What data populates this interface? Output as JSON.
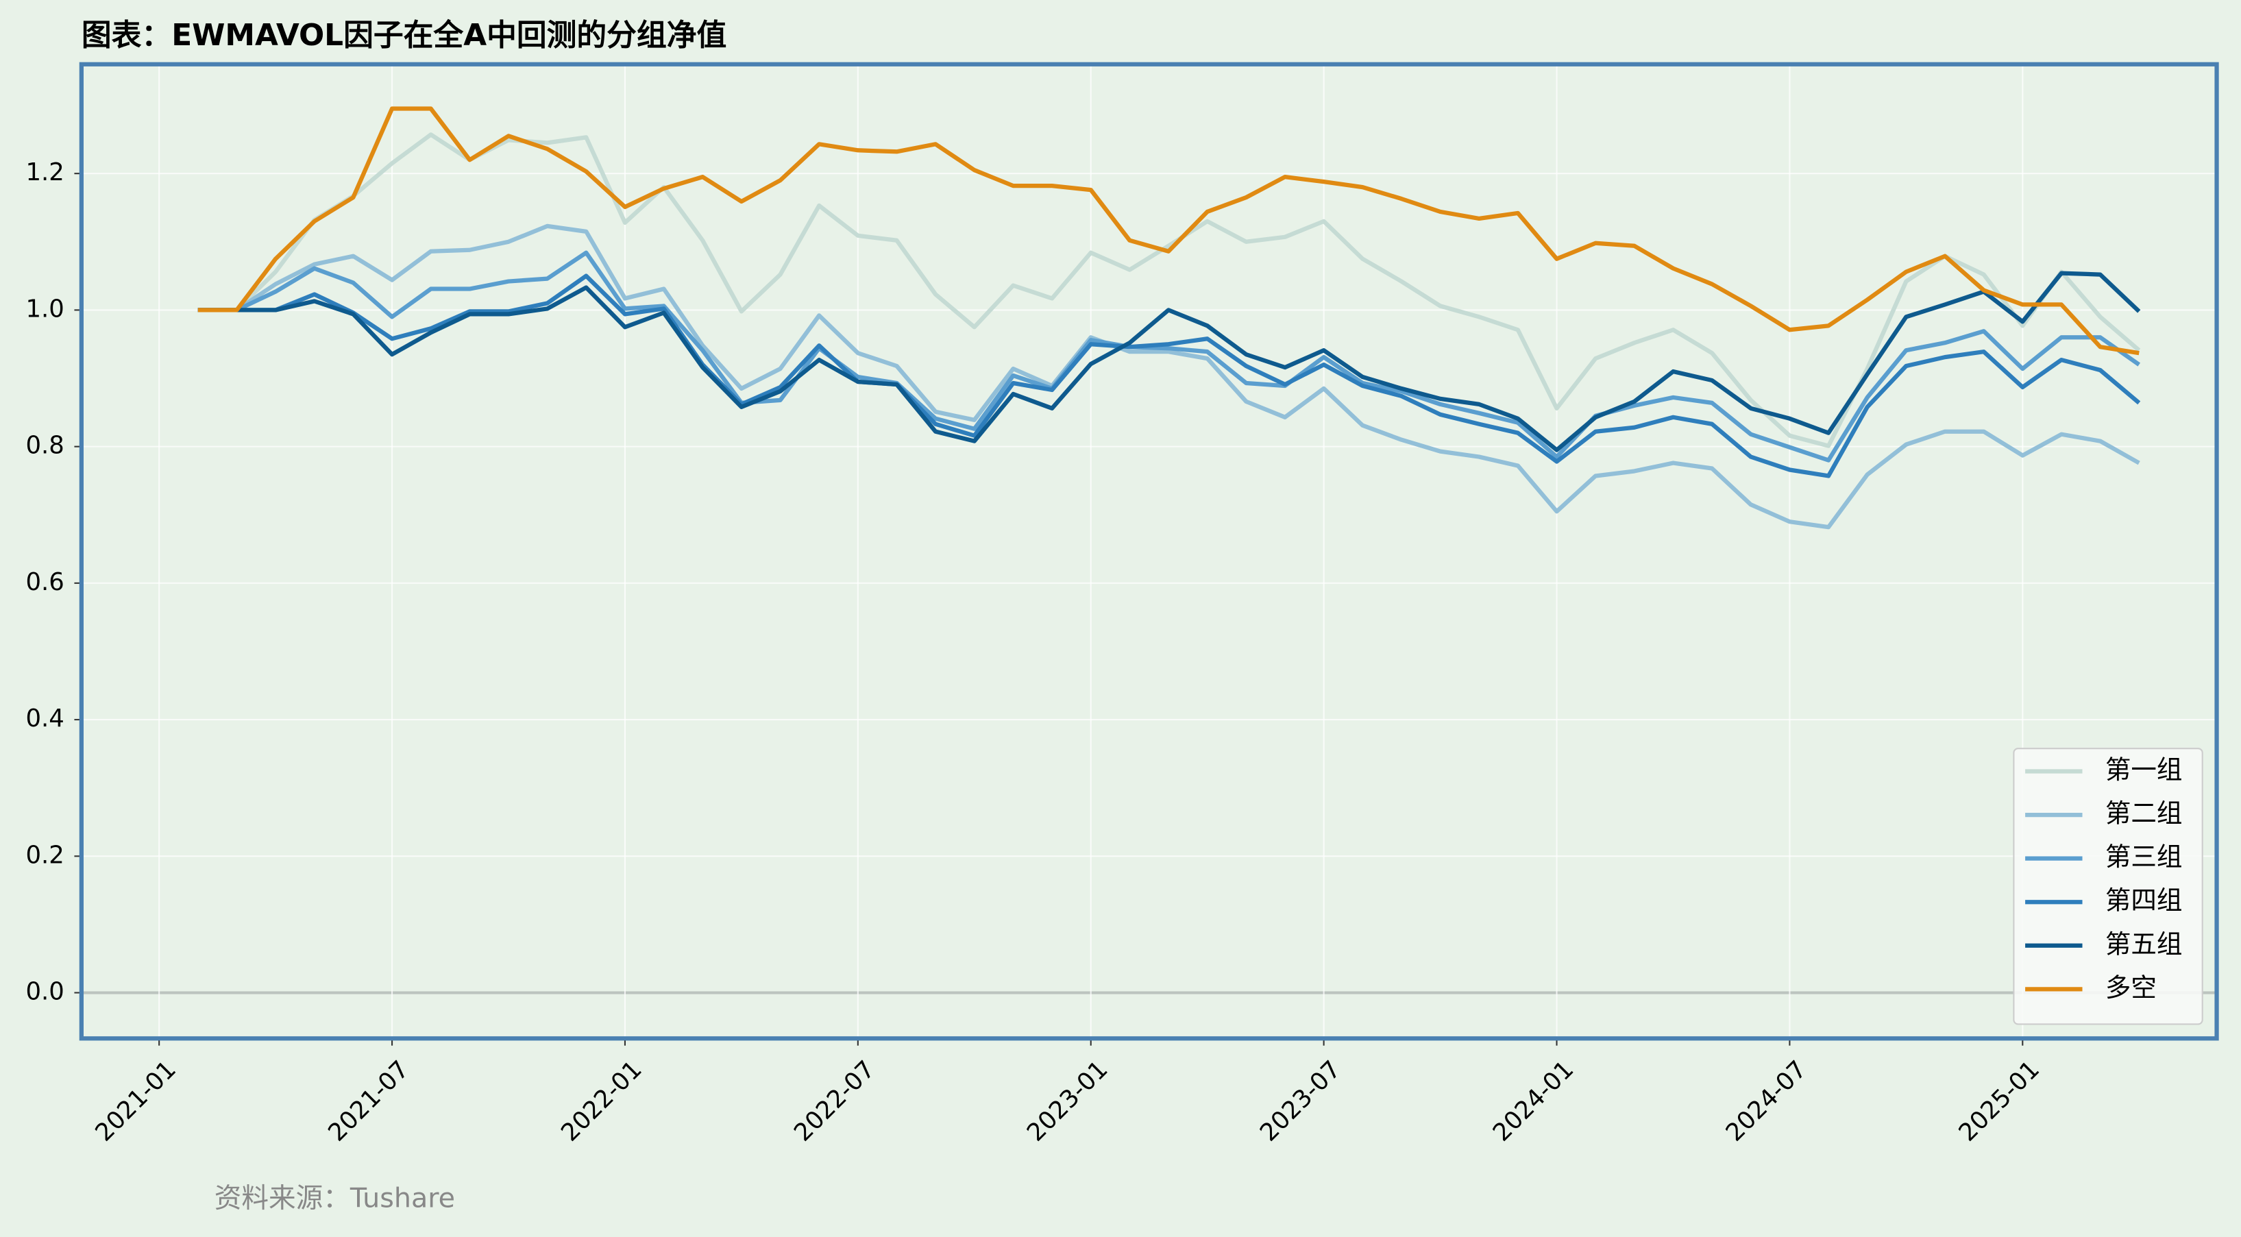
{
  "chart_data": {
    "type": "line",
    "title": "图表：EWMAVOL因子在全A中回测的分组净值",
    "source": "资料来源：Tushare",
    "x": [
      "2021-01",
      "2021-02",
      "2021-03",
      "2021-04",
      "2021-05",
      "2021-06",
      "2021-07",
      "2021-08",
      "2021-09",
      "2021-10",
      "2021-11",
      "2021-12",
      "2022-01",
      "2022-02",
      "2022-03",
      "2022-04",
      "2022-05",
      "2022-06",
      "2022-07",
      "2022-08",
      "2022-09",
      "2022-10",
      "2022-11",
      "2022-12",
      "2023-01",
      "2023-02",
      "2023-03",
      "2023-04",
      "2023-05",
      "2023-06",
      "2023-07",
      "2023-08",
      "2023-09",
      "2023-10",
      "2023-11",
      "2023-12",
      "2024-01",
      "2024-02",
      "2024-03",
      "2024-04",
      "2024-05",
      "2024-06",
      "2024-07",
      "2024-08",
      "2024-09",
      "2024-10",
      "2024-11",
      "2024-12",
      "2025-01",
      "2025-02",
      "2025-03"
    ],
    "series": [
      {
        "name": "第一组",
        "color": "#c5dbd4",
        "values": [
          1.0,
          1.0,
          1.056,
          1.132,
          1.167,
          1.215,
          1.257,
          1.22,
          1.249,
          1.245,
          1.253,
          1.128,
          1.18,
          1.102,
          0.998,
          1.052,
          1.153,
          1.109,
          1.102,
          1.023,
          0.975,
          1.036,
          1.017,
          1.084,
          1.059,
          1.094,
          1.13,
          1.1,
          1.107,
          1.13,
          1.075,
          1.042,
          1.006,
          0.99,
          0.971,
          0.856,
          0.929,
          0.952,
          0.971,
          0.937,
          0.868,
          0.816,
          0.801,
          0.914,
          1.042,
          1.079,
          1.052,
          0.977,
          1.056,
          0.99,
          0.941
        ]
      },
      {
        "name": "第二组",
        "color": "#92bfd8",
        "values": [
          1.0,
          1.0,
          1.038,
          1.067,
          1.079,
          1.044,
          1.086,
          1.088,
          1.1,
          1.123,
          1.115,
          1.017,
          1.031,
          0.948,
          0.885,
          0.914,
          0.992,
          0.937,
          0.918,
          0.851,
          0.839,
          0.914,
          0.889,
          0.96,
          0.939,
          0.939,
          0.929,
          0.866,
          0.843,
          0.885,
          0.831,
          0.81,
          0.793,
          0.785,
          0.772,
          0.705,
          0.757,
          0.764,
          0.776,
          0.768,
          0.715,
          0.69,
          0.682,
          0.759,
          0.803,
          0.822,
          0.822,
          0.787,
          0.818,
          0.808,
          0.776
        ]
      },
      {
        "name": "第三组",
        "color": "#5a9ecf",
        "values": [
          1.0,
          1.0,
          1.027,
          1.061,
          1.04,
          0.99,
          1.031,
          1.031,
          1.042,
          1.046,
          1.084,
          1.002,
          1.006,
          0.941,
          0.864,
          0.868,
          0.944,
          0.902,
          0.893,
          0.841,
          0.826,
          0.904,
          0.885,
          0.956,
          0.946,
          0.944,
          0.939,
          0.893,
          0.889,
          0.931,
          0.893,
          0.881,
          0.862,
          0.849,
          0.835,
          0.785,
          0.845,
          0.86,
          0.872,
          0.864,
          0.818,
          0.799,
          0.78,
          0.872,
          0.941,
          0.952,
          0.969,
          0.914,
          0.96,
          0.96,
          0.92
        ]
      },
      {
        "name": "第四组",
        "color": "#2e7ebc",
        "values": [
          1.0,
          1.0,
          1.0,
          1.023,
          0.996,
          0.958,
          0.973,
          0.998,
          0.998,
          1.01,
          1.05,
          0.994,
          1.002,
          0.92,
          0.862,
          0.887,
          0.948,
          0.895,
          0.891,
          0.833,
          0.816,
          0.893,
          0.883,
          0.95,
          0.946,
          0.95,
          0.958,
          0.918,
          0.891,
          0.92,
          0.889,
          0.874,
          0.847,
          0.833,
          0.82,
          0.778,
          0.822,
          0.828,
          0.843,
          0.833,
          0.785,
          0.766,
          0.757,
          0.858,
          0.918,
          0.931,
          0.939,
          0.887,
          0.927,
          0.912,
          0.864
        ]
      },
      {
        "name": "第五组",
        "color": "#0e5a8e",
        "values": [
          1.0,
          1.0,
          1.0,
          1.013,
          0.994,
          0.935,
          0.967,
          0.994,
          0.994,
          1.002,
          1.033,
          0.975,
          0.996,
          0.916,
          0.858,
          0.881,
          0.927,
          0.895,
          0.891,
          0.822,
          0.808,
          0.877,
          0.856,
          0.921,
          0.952,
          1.0,
          0.977,
          0.935,
          0.916,
          0.941,
          0.902,
          0.885,
          0.87,
          0.862,
          0.841,
          0.795,
          0.843,
          0.866,
          0.91,
          0.897,
          0.856,
          0.841,
          0.82,
          0.906,
          0.99,
          1.008,
          1.027,
          0.983,
          1.054,
          1.052,
          0.998
        ]
      },
      {
        "name": "多空",
        "color": "#e08a12",
        "values": [
          1.0,
          1.0,
          1.075,
          1.13,
          1.165,
          1.295,
          1.295,
          1.22,
          1.255,
          1.236,
          1.203,
          1.151,
          1.178,
          1.195,
          1.159,
          1.19,
          1.243,
          1.234,
          1.232,
          1.243,
          1.205,
          1.182,
          1.182,
          1.176,
          1.102,
          1.086,
          1.144,
          1.165,
          1.195,
          1.188,
          1.18,
          1.163,
          1.144,
          1.134,
          1.142,
          1.075,
          1.098,
          1.094,
          1.061,
          1.038,
          1.006,
          0.971,
          0.977,
          1.015,
          1.056,
          1.079,
          1.029,
          1.008,
          1.008,
          0.946,
          0.937
        ]
      }
    ],
    "xlim": [
      "2020-11",
      "2025-06"
    ],
    "xticks": [
      "2021-01",
      "2021-07",
      "2022-01",
      "2022-07",
      "2023-01",
      "2023-07",
      "2024-01",
      "2024-07",
      "2025-01"
    ],
    "ylim": [
      -0.067,
      1.36
    ],
    "yticks": [
      {
        "value": 0,
        "label": "0.0"
      },
      0.2,
      0.4,
      0.6,
      0.8,
      {
        "value": 1,
        "label": "1.0"
      },
      1.2
    ],
    "grid": true,
    "legend": "lower right"
  }
}
